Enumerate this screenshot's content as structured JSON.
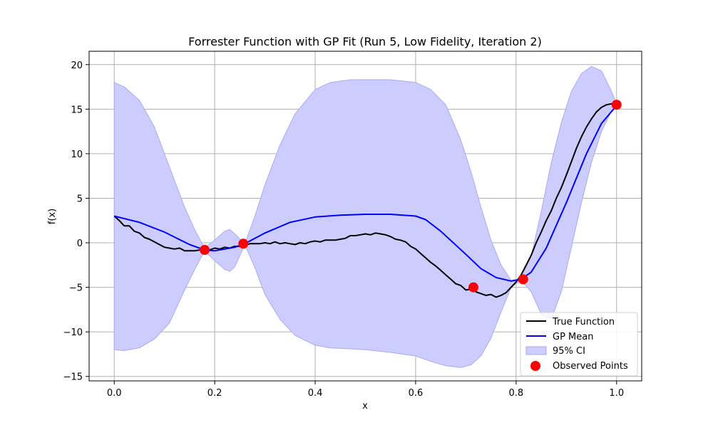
{
  "chart_data": {
    "type": "line",
    "title": "Forrester Function with GP Fit (Run 5, Low Fidelity, Iteration 2)",
    "xlabel": "x",
    "ylabel": "f(x)",
    "xlim": [
      -0.05,
      1.05
    ],
    "ylim": [
      -15.5,
      21.5
    ],
    "xticks": [
      0.0,
      0.2,
      0.4,
      0.6,
      0.8,
      1.0
    ],
    "xtick_labels": [
      "0.0",
      "0.2",
      "0.4",
      "0.6",
      "0.8",
      "1.0"
    ],
    "yticks": [
      -15,
      -10,
      -5,
      0,
      5,
      10,
      15,
      20
    ],
    "ytick_labels": [
      "−15",
      "−10",
      "−5",
      "0",
      "5",
      "10",
      "15",
      "20"
    ],
    "grid": true,
    "legend_position": "lower-right",
    "legend": [
      "True Function",
      "GP Mean",
      "95% CI",
      "Observed Points"
    ],
    "colors": {
      "true_function": "#000000",
      "gp_mean": "#0000ff",
      "ci_fill": "#ccccff",
      "ci_edge": "#aaaaf4",
      "observed": "#ff0000",
      "grid": "#b0b0b0"
    },
    "series": [
      {
        "name": "True Function",
        "x": [
          0.0,
          0.01,
          0.02,
          0.03,
          0.04,
          0.05,
          0.06,
          0.07,
          0.08,
          0.09,
          0.1,
          0.11,
          0.12,
          0.13,
          0.14,
          0.15,
          0.16,
          0.17,
          0.18,
          0.19,
          0.2,
          0.21,
          0.22,
          0.23,
          0.24,
          0.25,
          0.26,
          0.27,
          0.28,
          0.29,
          0.3,
          0.31,
          0.32,
          0.33,
          0.34,
          0.35,
          0.36,
          0.37,
          0.38,
          0.39,
          0.4,
          0.41,
          0.42,
          0.43,
          0.44,
          0.45,
          0.46,
          0.47,
          0.48,
          0.49,
          0.5,
          0.51,
          0.52,
          0.53,
          0.54,
          0.55,
          0.56,
          0.57,
          0.58,
          0.59,
          0.6,
          0.61,
          0.62,
          0.63,
          0.64,
          0.65,
          0.66,
          0.67,
          0.68,
          0.69,
          0.7,
          0.71,
          0.72,
          0.73,
          0.74,
          0.75,
          0.76,
          0.77,
          0.78,
          0.79,
          0.8,
          0.81,
          0.82,
          0.83,
          0.84,
          0.85,
          0.86,
          0.87,
          0.88,
          0.89,
          0.9,
          0.91,
          0.92,
          0.93,
          0.94,
          0.95,
          0.96,
          0.97,
          0.98,
          0.99,
          1.0
        ],
        "y": [
          3.0,
          2.5,
          1.9,
          1.9,
          1.3,
          1.1,
          0.6,
          0.4,
          0.1,
          -0.2,
          -0.5,
          -0.6,
          -0.7,
          -0.6,
          -0.9,
          -0.9,
          -0.9,
          -0.8,
          -0.8,
          -0.8,
          -0.6,
          -0.7,
          -0.5,
          -0.6,
          -0.4,
          -0.4,
          -0.3,
          -0.1,
          -0.1,
          -0.1,
          0.0,
          -0.1,
          0.1,
          -0.1,
          0.0,
          -0.1,
          -0.2,
          0.0,
          -0.1,
          0.1,
          0.2,
          0.1,
          0.3,
          0.3,
          0.3,
          0.4,
          0.5,
          0.8,
          0.8,
          0.9,
          1.0,
          0.9,
          1.1,
          1.0,
          0.9,
          0.7,
          0.4,
          0.3,
          0.1,
          -0.4,
          -0.7,
          -1.2,
          -1.7,
          -2.2,
          -2.6,
          -3.1,
          -3.6,
          -4.1,
          -4.6,
          -4.8,
          -5.3,
          -5.2,
          -5.5,
          -5.7,
          -5.9,
          -5.8,
          -6.1,
          -5.9,
          -5.6,
          -5.0,
          -4.4,
          -3.6,
          -2.5,
          -1.4,
          0.0,
          1.2,
          2.5,
          3.6,
          5.0,
          6.2,
          7.6,
          9.1,
          10.6,
          11.9,
          13.0,
          13.9,
          14.7,
          15.2,
          15.5,
          15.6,
          15.6
        ]
      },
      {
        "name": "GP Mean",
        "x": [
          0.0,
          0.05,
          0.1,
          0.15,
          0.18,
          0.2,
          0.24,
          0.26,
          0.3,
          0.35,
          0.4,
          0.45,
          0.5,
          0.55,
          0.6,
          0.62,
          0.65,
          0.7,
          0.73,
          0.76,
          0.79,
          0.81,
          0.83,
          0.86,
          0.9,
          0.94,
          0.97,
          1.0
        ],
        "y": [
          3.0,
          2.3,
          1.2,
          -0.2,
          -0.8,
          -0.9,
          -0.5,
          -0.1,
          1.1,
          2.3,
          2.9,
          3.1,
          3.2,
          3.2,
          3.0,
          2.6,
          1.3,
          -1.3,
          -2.9,
          -3.9,
          -4.3,
          -4.1,
          -3.3,
          -0.6,
          4.5,
          10.0,
          13.4,
          15.4
        ]
      },
      {
        "name": "95% CI",
        "x": [
          0.0,
          0.02,
          0.05,
          0.08,
          0.11,
          0.14,
          0.16,
          0.18,
          0.2,
          0.22,
          0.23,
          0.24,
          0.26,
          0.28,
          0.3,
          0.33,
          0.36,
          0.4,
          0.43,
          0.47,
          0.5,
          0.55,
          0.6,
          0.63,
          0.66,
          0.69,
          0.71,
          0.73,
          0.75,
          0.77,
          0.79,
          0.81,
          0.83,
          0.85,
          0.87,
          0.89,
          0.91,
          0.93,
          0.95,
          0.97,
          0.99,
          1.0
        ],
        "upper": [
          18.0,
          17.5,
          16.0,
          13.0,
          8.5,
          4.0,
          1.5,
          -0.6,
          0.3,
          1.3,
          1.5,
          1.0,
          -0.1,
          3.0,
          6.5,
          11.0,
          14.5,
          17.2,
          18.0,
          18.3,
          18.3,
          18.3,
          18.0,
          17.2,
          15.5,
          11.5,
          8.0,
          4.0,
          0.3,
          -2.5,
          -4.2,
          -4.0,
          -1.5,
          3.5,
          9.0,
          13.5,
          17.0,
          19.0,
          19.8,
          19.3,
          17.0,
          15.6
        ],
        "lower": [
          -12.0,
          -12.1,
          -11.8,
          -10.8,
          -9.0,
          -5.3,
          -3.0,
          -0.9,
          -2.0,
          -3.0,
          -3.2,
          -2.7,
          -0.2,
          -2.8,
          -5.8,
          -8.6,
          -10.4,
          -11.5,
          -11.8,
          -11.9,
          -12.0,
          -12.3,
          -12.7,
          -13.3,
          -13.8,
          -14.0,
          -13.7,
          -12.7,
          -10.7,
          -7.8,
          -5.0,
          -4.2,
          -5.5,
          -8.0,
          -8.6,
          -5.5,
          -0.5,
          4.5,
          9.0,
          12.5,
          14.8,
          15.4
        ]
      },
      {
        "name": "Observed Points",
        "x": [
          0.18,
          0.257,
          0.715,
          0.814,
          1.0
        ],
        "y": [
          -0.8,
          -0.1,
          -5.0,
          -4.1,
          15.5
        ]
      }
    ]
  }
}
